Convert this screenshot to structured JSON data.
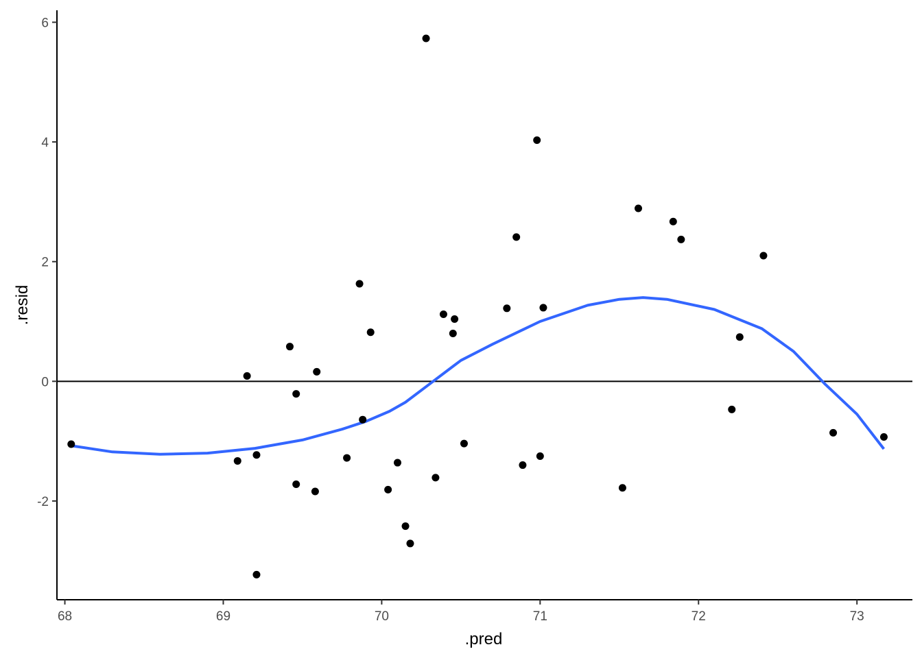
{
  "chart_data": {
    "type": "scatter",
    "title": "",
    "xlabel": ".pred",
    "ylabel": ".resid",
    "xlim": [
      67.95,
      73.35
    ],
    "ylim": [
      -3.65,
      6.2
    ],
    "x_ticks": [
      68,
      69,
      70,
      71,
      72,
      73
    ],
    "x_tick_labels": [
      "68",
      "69",
      "70",
      "71",
      "72",
      "73"
    ],
    "y_ticks": [
      -2,
      0,
      2,
      4,
      6
    ],
    "y_tick_labels": [
      "-2",
      "0",
      "2",
      "4",
      "6"
    ],
    "grid": false,
    "reference_line": {
      "y": 0
    },
    "series": [
      {
        "type": "scatter",
        "color": "#000000",
        "points": [
          [
            68.04,
            -1.05
          ],
          [
            69.09,
            -1.33
          ],
          [
            69.15,
            0.09
          ],
          [
            69.21,
            -1.23
          ],
          [
            69.21,
            -3.23
          ],
          [
            69.42,
            0.58
          ],
          [
            69.46,
            -0.21
          ],
          [
            69.46,
            -1.72
          ],
          [
            69.58,
            -1.84
          ],
          [
            69.59,
            0.16
          ],
          [
            69.78,
            -1.28
          ],
          [
            69.86,
            1.63
          ],
          [
            69.88,
            -0.64
          ],
          [
            69.93,
            0.82
          ],
          [
            70.04,
            -1.81
          ],
          [
            70.1,
            -1.36
          ],
          [
            70.15,
            -2.42
          ],
          [
            70.18,
            -2.71
          ],
          [
            70.28,
            5.73
          ],
          [
            70.34,
            -1.61
          ],
          [
            70.39,
            1.12
          ],
          [
            70.45,
            0.8
          ],
          [
            70.46,
            1.04
          ],
          [
            70.52,
            -1.04
          ],
          [
            70.79,
            1.22
          ],
          [
            70.85,
            2.41
          ],
          [
            70.89,
            -1.4
          ],
          [
            70.98,
            4.03
          ],
          [
            71.0,
            -1.25
          ],
          [
            71.02,
            1.23
          ],
          [
            71.52,
            -1.78
          ],
          [
            71.62,
            2.89
          ],
          [
            71.84,
            2.67
          ],
          [
            71.89,
            2.37
          ],
          [
            72.21,
            -0.47
          ],
          [
            72.26,
            0.74
          ],
          [
            72.41,
            2.1
          ],
          [
            72.85,
            -0.86
          ],
          [
            73.17,
            -0.93
          ]
        ]
      },
      {
        "type": "line",
        "color": "#3366FF",
        "points": [
          [
            68.05,
            -1.08
          ],
          [
            68.3,
            -1.18
          ],
          [
            68.6,
            -1.22
          ],
          [
            68.9,
            -1.2
          ],
          [
            69.2,
            -1.12
          ],
          [
            69.5,
            -0.98
          ],
          [
            69.75,
            -0.8
          ],
          [
            69.9,
            -0.67
          ],
          [
            70.05,
            -0.5
          ],
          [
            70.15,
            -0.35
          ],
          [
            70.3,
            -0.05
          ],
          [
            70.45,
            0.25
          ],
          [
            70.5,
            0.35
          ],
          [
            70.7,
            0.62
          ],
          [
            71.0,
            1.0
          ],
          [
            71.3,
            1.27
          ],
          [
            71.5,
            1.37
          ],
          [
            71.65,
            1.4
          ],
          [
            71.8,
            1.37
          ],
          [
            72.1,
            1.2
          ],
          [
            72.4,
            0.88
          ],
          [
            72.6,
            0.5
          ],
          [
            72.8,
            -0.05
          ],
          [
            73.0,
            -0.55
          ],
          [
            73.17,
            -1.13
          ]
        ]
      }
    ]
  }
}
